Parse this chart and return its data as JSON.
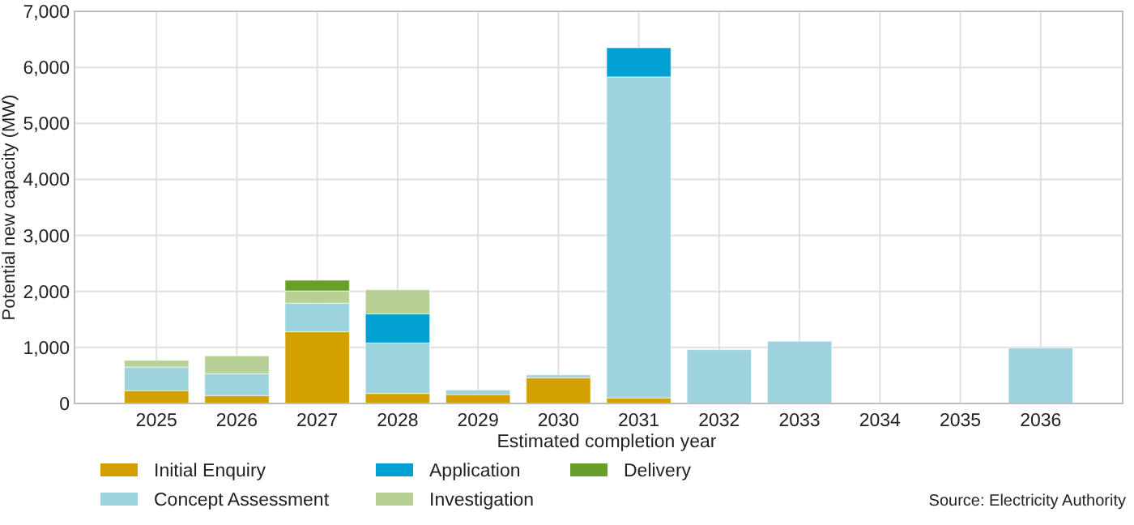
{
  "chart_data": {
    "type": "bar",
    "stacked": true,
    "xlabel": "Estimated completion year",
    "ylabel": "Potential new capacity (MW)",
    "categories": [
      "2025",
      "2026",
      "2027",
      "2028",
      "2029",
      "2030",
      "2031",
      "2032",
      "2033",
      "2034",
      "2035",
      "2036"
    ],
    "series": [
      {
        "name": "Initial Enquiry",
        "color": "#d4a000",
        "values": [
          230,
          140,
          1280,
          180,
          160,
          460,
          100,
          0,
          0,
          0,
          0,
          0
        ]
      },
      {
        "name": "Concept Assessment",
        "color": "#9dd3dc",
        "values": [
          420,
          390,
          510,
          900,
          80,
          50,
          5730,
          960,
          1110,
          0,
          0,
          990
        ]
      },
      {
        "name": "Application",
        "color": "#00a0d2",
        "values": [
          0,
          0,
          0,
          520,
          0,
          0,
          520,
          0,
          0,
          0,
          0,
          0
        ]
      },
      {
        "name": "Investigation",
        "color": "#b6d095",
        "values": [
          120,
          320,
          220,
          430,
          0,
          0,
          0,
          0,
          0,
          0,
          0,
          0
        ]
      },
      {
        "name": "Delivery",
        "color": "#6a9e2a",
        "values": [
          0,
          0,
          190,
          0,
          0,
          0,
          0,
          0,
          0,
          0,
          0,
          0
        ]
      }
    ],
    "ylim": [
      0,
      7000
    ],
    "yticks": [
      {
        "value": 0,
        "label": "0"
      },
      {
        "value": 1000,
        "label": "1,000"
      },
      {
        "value": 2000,
        "label": "2,000"
      },
      {
        "value": 3000,
        "label": "3,000"
      },
      {
        "value": 4000,
        "label": "4,000"
      },
      {
        "value": 5000,
        "label": "5,000"
      },
      {
        "value": 6000,
        "label": "6,000"
      },
      {
        "value": 7000,
        "label": "7,000"
      }
    ],
    "grid": true,
    "legend": "bottom",
    "annotations": [
      "Source: Electricity Authority"
    ]
  }
}
